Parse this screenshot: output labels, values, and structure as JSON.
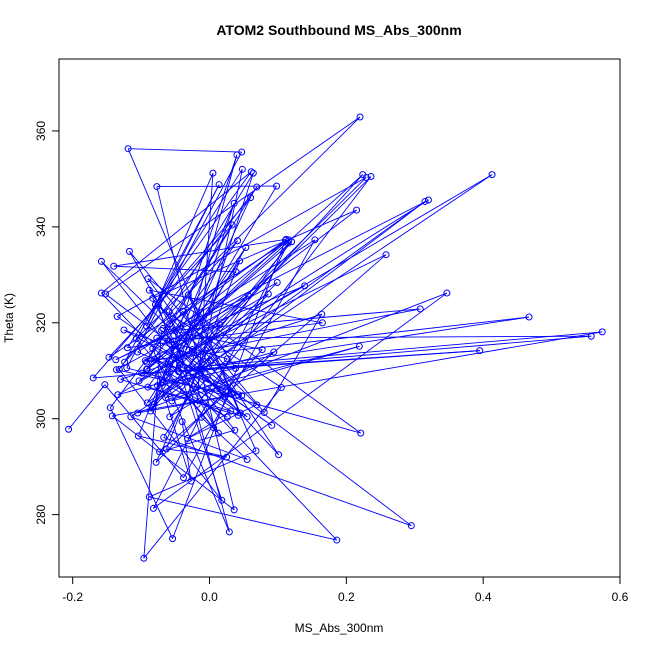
{
  "chart_data": {
    "type": "scatter",
    "title": "ATOM2 Southbound MS_Abs_300nm",
    "xlabel": "MS_Abs_300nm",
    "ylabel": "Theta (K)",
    "xlim": [
      -0.22,
      0.6
    ],
    "ylim": [
      267,
      375
    ],
    "xticks": [
      -0.2,
      0.0,
      0.2,
      0.4,
      0.6
    ],
    "xtick_labels": [
      "-0.2",
      "0.0",
      "0.2",
      "0.4",
      "0.6"
    ],
    "yticks": [
      280,
      300,
      320,
      340,
      360
    ],
    "ytick_labels": [
      "280",
      "300",
      "320",
      "340",
      "360"
    ],
    "grid": false,
    "legend": "none",
    "color": "#0000ff",
    "marker": "open-circle",
    "connect_points": true,
    "series": [
      {
        "points": [
          [
            -0.206,
            297.8
          ],
          [
            -0.153,
            307.1
          ],
          [
            -0.038,
            287.7
          ],
          [
            0.154,
            337.3
          ],
          [
            -0.105,
            313.9
          ],
          [
            0.047,
            304.8
          ],
          [
            -0.125,
            318.5
          ],
          [
            0.002,
            312.0
          ],
          [
            -0.067,
            296.1
          ],
          [
            0.295,
            277.7
          ],
          [
            -0.152,
            326.0
          ],
          [
            0.22,
            362.9
          ],
          [
            -0.107,
            316.7
          ],
          [
            0.006,
            298.1
          ],
          [
            -0.061,
            309.7
          ],
          [
            0.042,
            300.7
          ],
          [
            -0.13,
            308.2
          ],
          [
            0.164,
            321.8
          ],
          [
            0.08,
            301.3
          ],
          [
            -0.117,
            334.9
          ],
          [
            -0.058,
            319.8
          ],
          [
            0.111,
            337.2
          ],
          [
            -0.054,
            275.0
          ],
          [
            -0.145,
            302.3
          ],
          [
            -0.039,
            322.4
          ],
          [
            0.101,
            292.5
          ],
          [
            -0.018,
            310.8
          ],
          [
            0.574,
            318.1
          ],
          [
            -0.142,
            300.6
          ],
          [
            0.036,
            281.0
          ],
          [
            -0.077,
            348.4
          ],
          [
            0.098,
            348.5
          ],
          [
            -0.076,
            306.9
          ],
          [
            0.038,
            310.5
          ],
          [
            -0.031,
            325.8
          ],
          [
            0.068,
            293.3
          ],
          [
            -0.088,
            283.7
          ],
          [
            0.186,
            274.7
          ],
          [
            -0.158,
            326.2
          ],
          [
            0.061,
            351.5
          ],
          [
            -0.079,
            323.8
          ],
          [
            0.105,
            306.5
          ],
          [
            -0.096,
            270.9
          ],
          [
            -0.07,
            318.4
          ],
          [
            0.045,
            301.2
          ],
          [
            -0.119,
            356.3
          ],
          [
            0.047,
            355.6
          ],
          [
            -0.121,
            310.6
          ],
          [
            0.221,
            297.0
          ],
          [
            -0.09,
            329.2
          ],
          [
            0.032,
            305.1
          ],
          [
            -0.136,
            310.2
          ],
          [
            0.099,
            328.4
          ],
          [
            -0.083,
            302.4
          ],
          [
            0.06,
            346.1
          ],
          [
            -0.17,
            308.5
          ],
          [
            0.558,
            317.2
          ],
          [
            -0.077,
            316.8
          ],
          [
            0.026,
            312.5
          ],
          [
            -0.058,
            300.4
          ],
          [
            0.094,
            313.9
          ],
          [
            -0.134,
            305.0
          ],
          [
            0.413,
            350.9
          ],
          [
            -0.115,
            300.4
          ],
          [
            0.055,
            291.5
          ],
          [
            -0.012,
            300.3
          ],
          [
            0.077,
            314.4
          ],
          [
            -0.068,
            318.8
          ],
          [
            0.039,
            330.6
          ],
          [
            -0.14,
            331.8
          ],
          [
            0.112,
            337.4
          ],
          [
            -0.091,
            310.3
          ],
          [
            0.215,
            343.5
          ],
          [
            -0.083,
            325.1
          ],
          [
            0.013,
            297.0
          ],
          [
            -0.052,
            312.8
          ],
          [
            0.091,
            298.6
          ],
          [
            -0.135,
            321.3
          ],
          [
            0.229,
            350.3
          ],
          [
            -0.025,
            314.4
          ],
          [
            0.258,
            334.2
          ],
          [
            -0.073,
            293.1
          ],
          [
            0.037,
            297.6
          ],
          [
            -0.158,
            332.8
          ],
          [
            0.042,
            305.0
          ],
          [
            -0.105,
            301.2
          ],
          [
            0.347,
            326.2
          ],
          [
            -0.082,
            281.3
          ],
          [
            0.115,
            336.6
          ],
          [
            -0.014,
            310.2
          ],
          [
            0.048,
            352.0
          ],
          [
            -0.12,
            314.8
          ],
          [
            0.165,
            320.0
          ],
          [
            -0.088,
            326.8
          ],
          [
            0.022,
            304.5
          ],
          [
            -0.06,
            316.2
          ],
          [
            0.139,
            327.7
          ],
          [
            -0.103,
            307.9
          ],
          [
            0.057,
            325.6
          ],
          [
            -0.137,
            312.3
          ],
          [
            0.32,
            345.6
          ],
          [
            -0.06,
            311.4
          ],
          [
            0.024,
            305.9
          ],
          [
            -0.078,
            290.9
          ],
          [
            0.015,
            319.6
          ],
          [
            -0.094,
            312.1
          ],
          [
            0.467,
            321.2
          ],
          [
            -0.029,
            310.4
          ],
          [
            0.064,
            351.2
          ],
          [
            -0.059,
            322.3
          ],
          [
            0.029,
            276.4
          ],
          [
            -0.083,
            314.6
          ],
          [
            0.033,
            340.4
          ],
          [
            -0.147,
            312.8
          ],
          [
            0.116,
            337.3
          ],
          [
            -0.051,
            318.4
          ],
          [
            0.308,
            322.9
          ],
          [
            -0.092,
            311.8
          ],
          [
            0.069,
            348.3
          ],
          [
            -0.132,
            310.3
          ],
          [
            0.018,
            283.0
          ],
          [
            -0.075,
            323.6
          ],
          [
            0.069,
            302.9
          ],
          [
            -0.032,
            295.9
          ],
          [
            0.031,
            301.6
          ],
          [
            -0.09,
            306.6
          ],
          [
            0.053,
            335.7
          ],
          [
            -0.086,
            301.6
          ],
          [
            0.12,
            336.9
          ],
          [
            -0.099,
            309.5
          ],
          [
            0.395,
            314.2
          ],
          [
            -0.045,
            309.8
          ],
          [
            0.036,
            344.9
          ],
          [
            -0.104,
            296.4
          ],
          [
            0.025,
            292.0
          ],
          [
            -0.063,
            293.7
          ],
          [
            0.044,
            332.9
          ],
          [
            -0.091,
            303.3
          ],
          [
            0.315,
            345.3
          ],
          [
            -0.064,
            304.4
          ],
          [
            0.219,
            315.1
          ],
          [
            -0.055,
            303.7
          ],
          [
            0.086,
            326.0
          ],
          [
            -0.08,
            312.4
          ],
          [
            0.055,
            300.4
          ],
          [
            -0.044,
            311.2
          ],
          [
            0.04,
            355.0
          ],
          [
            -0.081,
            303.1
          ],
          [
            0.224,
            350.9
          ],
          [
            -0.092,
            310.3
          ],
          [
            0.041,
            337.1
          ],
          [
            -0.124,
            311.8
          ],
          [
            0.014,
            348.8
          ],
          [
            -0.092,
            319.3
          ],
          [
            0.005,
            351.2
          ],
          [
            -0.018,
            303.0
          ],
          [
            0.236,
            350.5
          ],
          [
            -0.069,
            307.5
          ],
          [
            0.026,
            300.3
          ],
          [
            -0.075,
            309.0
          ],
          [
            -0.027,
            287.0
          ],
          [
            -0.04,
            299.4
          ]
        ]
      }
    ]
  }
}
